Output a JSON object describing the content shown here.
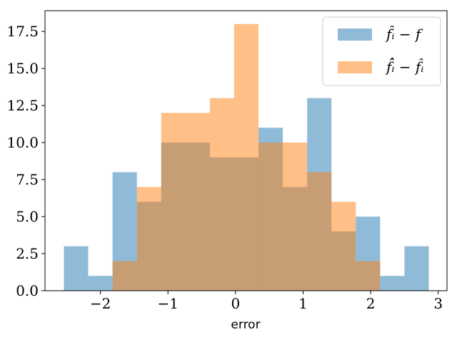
{
  "chart_data": {
    "type": "bar",
    "title": "",
    "xlabel": "error",
    "ylabel": "",
    "xlim": [
      -2.82,
      3.13
    ],
    "ylim": [
      0,
      18.9
    ],
    "grid": false,
    "legend_placement": "top-right",
    "bin_edges": [
      -2.54,
      -2.18,
      -1.82,
      -1.46,
      -1.1,
      -0.74,
      -0.38,
      -0.02,
      0.34,
      0.7,
      1.06,
      1.42,
      1.78,
      2.14,
      2.5,
      2.86
    ],
    "series": [
      {
        "name": "f̂ᵢ − f",
        "color": "#1f77b4",
        "opacity": 0.5,
        "counts": [
          3,
          1,
          8,
          6,
          10,
          10,
          9,
          9,
          11,
          7,
          13,
          4,
          5,
          1,
          3
        ]
      },
      {
        "name": "f̂̂ᵢ − f̂ᵢ",
        "color": "#ff7f0e",
        "opacity": 0.5,
        "counts": [
          0,
          0,
          2,
          7,
          12,
          12,
          13,
          18,
          10,
          10,
          8,
          6,
          2,
          0,
          0
        ]
      }
    ],
    "x_ticks": [
      -2,
      -1,
      0,
      1,
      2,
      3
    ],
    "x_tick_labels": [
      "−2",
      "−1",
      "0",
      "1",
      "2",
      "3"
    ],
    "y_ticks": [
      0,
      2.5,
      5,
      7.5,
      10,
      12.5,
      15,
      17.5
    ],
    "y_tick_labels": [
      "0.0",
      "2.5",
      "5.0",
      "7.5",
      "10.0",
      "12.5",
      "15.0",
      "17.5"
    ]
  }
}
